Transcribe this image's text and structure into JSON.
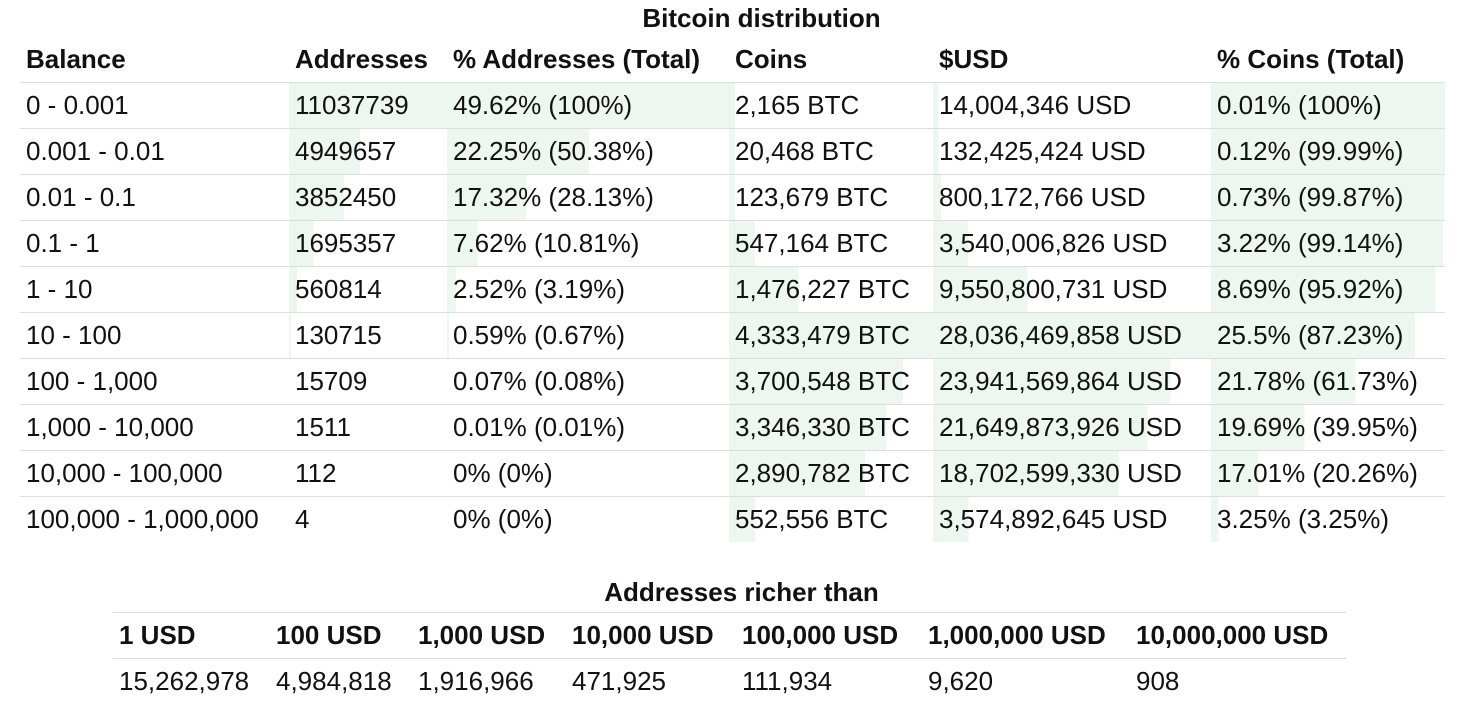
{
  "distribution": {
    "caption": "Bitcoin distribution",
    "headers": [
      "Balance",
      "Addresses",
      "% Addresses (Total)",
      "Coins",
      "$USD",
      "% Coins (Total)"
    ],
    "rows": [
      {
        "balance": "0 - 0.001",
        "addresses": "11037739",
        "pct_addresses": "49.62% (100%)",
        "coins": "2,165 BTC",
        "usd": "14,004,346 USD",
        "pct_coins": "0.01% (100%)"
      },
      {
        "balance": "0.001 - 0.01",
        "addresses": "4949657",
        "pct_addresses": "22.25% (50.38%)",
        "coins": "20,468 BTC",
        "usd": "132,425,424 USD",
        "pct_coins": "0.12% (99.99%)"
      },
      {
        "balance": "0.01 - 0.1",
        "addresses": "3852450",
        "pct_addresses": "17.32% (28.13%)",
        "coins": "123,679 BTC",
        "usd": "800,172,766 USD",
        "pct_coins": "0.73% (99.87%)"
      },
      {
        "balance": "0.1 - 1",
        "addresses": "1695357",
        "pct_addresses": "7.62% (10.81%)",
        "coins": "547,164 BTC",
        "usd": "3,540,006,826 USD",
        "pct_coins": "3.22% (99.14%)"
      },
      {
        "balance": "1 - 10",
        "addresses": "560814",
        "pct_addresses": "2.52% (3.19%)",
        "coins": "1,476,227 BTC",
        "usd": "9,550,800,731 USD",
        "pct_coins": "8.69% (95.92%)"
      },
      {
        "balance": "10 - 100",
        "addresses": "130715",
        "pct_addresses": "0.59% (0.67%)",
        "coins": "4,333,479 BTC",
        "usd": "28,036,469,858 USD",
        "pct_coins": "25.5% (87.23%)"
      },
      {
        "balance": "100 - 1,000",
        "addresses": "15709",
        "pct_addresses": "0.07% (0.08%)",
        "coins": "3,700,548 BTC",
        "usd": "23,941,569,864 USD",
        "pct_coins": "21.78% (61.73%)"
      },
      {
        "balance": "1,000 - 10,000",
        "addresses": "1511",
        "pct_addresses": "0.01% (0.01%)",
        "coins": "3,346,330 BTC",
        "usd": "21,649,873,926 USD",
        "pct_coins": "19.69% (39.95%)"
      },
      {
        "balance": "10,000 - 100,000",
        "addresses": "112",
        "pct_addresses": "0% (0%)",
        "coins": "2,890,782 BTC",
        "usd": "18,702,599,330 USD",
        "pct_coins": "17.01% (20.26%)"
      },
      {
        "balance": "100,000 - 1,000,000",
        "addresses": "4",
        "pct_addresses": "0% (0%)",
        "coins": "552,556 BTC",
        "usd": "3,574,892,645 USD",
        "pct_coins": "3.25% (3.25%)"
      }
    ]
  },
  "richer": {
    "caption": "Addresses richer than",
    "headers": [
      "1 USD",
      "100 USD",
      "1,000 USD",
      "10,000 USD",
      "100,000 USD",
      "1,000,000 USD",
      "10,000,000 USD"
    ],
    "values": [
      "15,262,978",
      "4,984,818",
      "1,916,966",
      "471,925",
      "111,934",
      "9,620",
      "908"
    ]
  },
  "colors": {
    "bar": "#eef7ef",
    "rule": "#dddddd",
    "text": "#111111"
  }
}
